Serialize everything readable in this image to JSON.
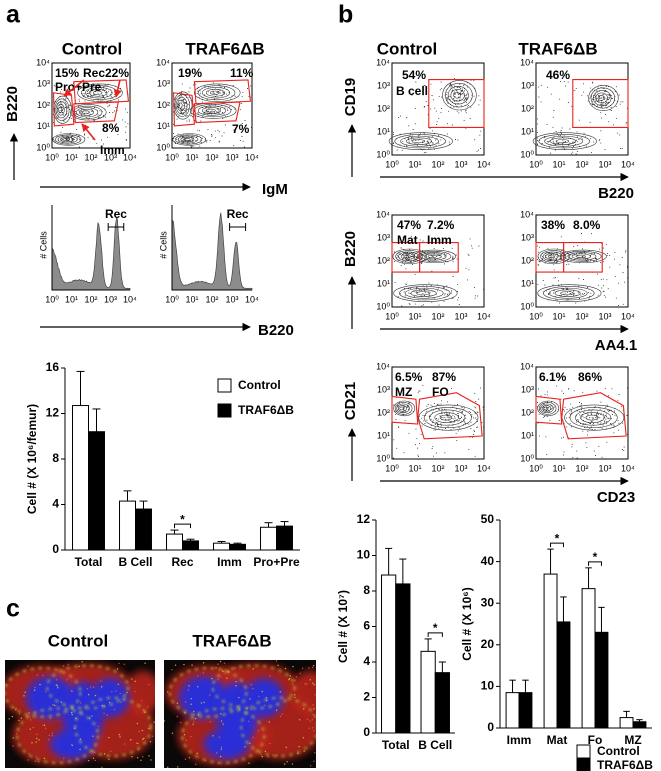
{
  "panel_labels": [
    "a",
    "b",
    "c"
  ],
  "flow_ticks": [
    "10⁰",
    "10¹",
    "10²",
    "10³",
    "10⁴"
  ],
  "col_titles": [
    "Control",
    "TRAF6ΔB"
  ],
  "panel_a": {
    "y_label": "B220",
    "x_label": "IgM",
    "hist_y_label": "# Cells",
    "hist_x_label": "B220",
    "hist_gate": {
      "text": "Rec",
      "color": "#e8231e"
    },
    "gates": [
      [
        {
          "text": "15%"
        },
        {
          "text": "Pro+Pre"
        },
        {
          "text": "Rec",
          "color": "#e8231e"
        },
        {
          "text": "22%",
          "color": "#e8231e"
        },
        {
          "text": "8%"
        },
        {
          "text": "Imm"
        }
      ],
      [
        {
          "text": "19%"
        },
        {
          "text": "11%",
          "color": "#e8231e"
        },
        {
          "text": "7%"
        }
      ]
    ]
  },
  "panel_b": {
    "rows": [
      {
        "y_label": "CD19",
        "x_label": "B220",
        "gates": [
          [
            {
              "text": "54%",
              "color": "#e8231e"
            },
            {
              "text": "B cell"
            }
          ],
          [
            {
              "text": "46%",
              "color": "#e8231e"
            }
          ]
        ]
      },
      {
        "y_label": "B220",
        "x_label": "AA4.1",
        "gates": [
          [
            {
              "text": "47%",
              "color": "#e8231e"
            },
            {
              "text": "Mat",
              "color": "#e8231e"
            },
            {
              "text": "7.2%"
            },
            {
              "text": "Imm"
            }
          ],
          [
            {
              "text": "38%",
              "color": "#e8231e"
            },
            {
              "text": "8.0%"
            }
          ]
        ]
      },
      {
        "y_label": "CD21",
        "x_label": "CD23",
        "gates": [
          [
            {
              "text": "6.5%"
            },
            {
              "text": "MZ"
            },
            {
              "text": "87%"
            },
            {
              "text": "FO"
            }
          ],
          [
            {
              "text": "6.1%"
            },
            {
              "text": "86%"
            }
          ]
        ]
      }
    ]
  },
  "chart_data": [
    {
      "type": "bar",
      "y_label": "Cell # (X 10⁶/femur)",
      "categories": [
        "Total",
        "B Cell",
        "Rec",
        "Imm",
        "Pro+Pre"
      ],
      "ylim": [
        0,
        16
      ],
      "yticks": [
        0,
        4,
        8,
        12,
        16
      ],
      "legend": "upper right",
      "annotation": "*",
      "significant": [
        "Rec"
      ],
      "series": [
        {
          "name": "Control",
          "color": "#ffffff",
          "values": [
            12.7,
            4.3,
            1.4,
            0.6,
            2.0
          ],
          "errors": [
            3.0,
            0.9,
            0.35,
            0.15,
            0.4
          ]
        },
        {
          "name": "TRAF6ΔB",
          "color": "#000000",
          "values": [
            10.4,
            3.6,
            0.8,
            0.5,
            2.1
          ],
          "errors": [
            2.0,
            0.7,
            0.15,
            0.1,
            0.4
          ]
        }
      ]
    },
    {
      "type": "bar",
      "y_label": "Cell # (X 10⁷)",
      "categories": [
        "Total",
        "B Cell"
      ],
      "ylim": [
        0,
        12
      ],
      "yticks": [
        0,
        2,
        4,
        6,
        8,
        10,
        12
      ],
      "annotation": "*",
      "significant": [
        "B Cell"
      ],
      "series": [
        {
          "color": "#ffffff",
          "values": [
            8.9,
            4.6
          ],
          "errors": [
            1.5,
            0.7
          ]
        },
        {
          "color": "#000000",
          "values": [
            8.4,
            3.4
          ],
          "errors": [
            1.4,
            0.6
          ]
        }
      ]
    },
    {
      "type": "bar",
      "y_label": "Cell # (X 10⁶)",
      "categories": [
        "Imm",
        "Mat",
        "Fo",
        "MZ"
      ],
      "ylim": [
        0,
        50
      ],
      "yticks": [
        0,
        10,
        20,
        30,
        40,
        50
      ],
      "legend": "below",
      "annotation": "*",
      "significant": [
        "Mat",
        "Fo"
      ],
      "series": [
        {
          "name": "Control",
          "color": "#ffffff",
          "values": [
            8.5,
            37,
            33.5,
            2.5
          ],
          "errors": [
            3,
            6,
            5,
            1.5
          ]
        },
        {
          "name": "TRAF6ΔB",
          "color": "#000000",
          "values": [
            8.5,
            25.5,
            23,
            1.5
          ],
          "errors": [
            3,
            6,
            6,
            0.5
          ]
        }
      ]
    }
  ]
}
